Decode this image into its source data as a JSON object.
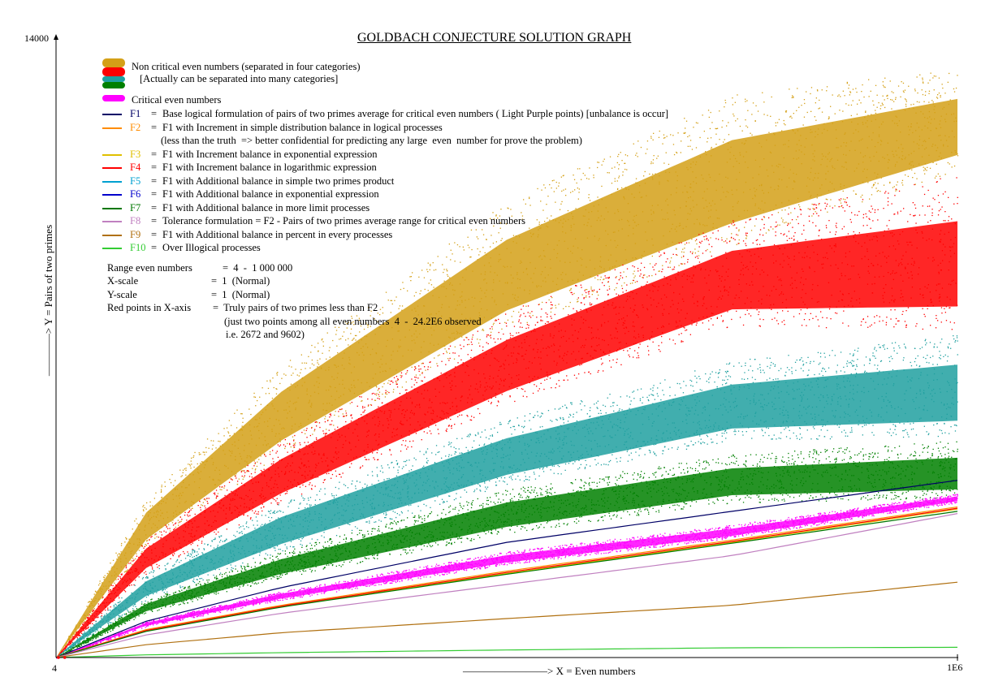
{
  "title": "GOLDBACH CONJECTURE SOLUTION GRAPH",
  "legend": {
    "non_critical_line1": "Non critical even numbers (separated in four categories)",
    "non_critical_line2": "[Actually can be separated into many categories]",
    "critical": "Critical even numbers",
    "formulas": [
      {
        "code": "F1",
        "eq": "=",
        "desc": "Base logical formulation of pairs of two primes average for critical even numbers ( Light Purple points) [unbalance is occur]",
        "color": "#000066"
      },
      {
        "code": "F2",
        "eq": "=",
        "desc": "F1 with Increment in simple distribution balance in logical processes",
        "color": "#ff8c00"
      },
      {
        "code": "F3",
        "eq": "=",
        "desc": "F1 with Increment balance in exponential expression",
        "color": "#e0c000"
      },
      {
        "code": "F4",
        "eq": "=",
        "desc": "F1 with Increment balance in logarithmic expression",
        "color": "#ff0000"
      },
      {
        "code": "F5",
        "eq": "=",
        "desc": "F1 with Additional balance in simple two primes product",
        "color": "#00a0d0"
      },
      {
        "code": "F6",
        "eq": "=",
        "desc": "F1 with Additional balance in exponential expression",
        "color": "#0000cc"
      },
      {
        "code": "F7",
        "eq": "=",
        "desc": "F1 with Additional balance in more limit processes",
        "color": "#007700"
      },
      {
        "code": "F8",
        "eq": "=",
        "desc": "Tolerance formulation = F2 - Pairs of two primes average range for critical even numbers",
        "color": "#c080c0"
      },
      {
        "code": "F9",
        "eq": "=",
        "desc": "F1 with Additional balance in percent in every processes",
        "color": "#b07010"
      },
      {
        "code": "F10",
        "eq": "=",
        "desc": "Over Illogical processes",
        "color": "#33cc33"
      }
    ],
    "f2_note": "(less than the truth  => better confidential for predicting any large  even  number for prove the problem)"
  },
  "info": {
    "range_label": "Range even numbers",
    "range_value": "=  4  -  1 000 000",
    "xscale_label": "X-scale",
    "xscale_value": "=  1  (Normal)",
    "yscale_label": "Y-scale",
    "yscale_value": "=  1  (Normal)",
    "red_label": "Red points in X-axis",
    "red_value": "=  Truly pairs of two primes less than F2",
    "red_note1": "(just two points among all even numbers  4  -  24.2E6 observed",
    "red_note2": "i.e. 2672 and 9602)"
  },
  "axes": {
    "xlabel": "————————>  X = Even numbers",
    "ylabel": "————> Y = Pairs of two primes",
    "x_min_label": "4",
    "x_max_label": "1E6",
    "y_max_label": "14000"
  },
  "chart_data": {
    "type": "scatter",
    "title": "GOLDBACH CONJECTURE SOLUTION GRAPH",
    "xlabel": "X = Even numbers",
    "ylabel": "Y = Pairs of two primes",
    "xlim": [
      4,
      1000000
    ],
    "ylim": [
      0,
      14000
    ],
    "grid": false,
    "legend_placement": "top-left",
    "point_bands": [
      {
        "name": "Non critical even numbers (gold)",
        "color": "#d4a017",
        "x": [
          4,
          100000,
          250000,
          500000,
          750000,
          1000000
        ],
        "y_low": [
          0,
          2500,
          4600,
          7400,
          9300,
          11000
        ],
        "y_high": [
          0,
          3600,
          6600,
          10300,
          12700,
          13300
        ]
      },
      {
        "name": "Non critical even numbers (red)",
        "color": "#ff0000",
        "x": [
          4,
          100000,
          250000,
          500000,
          750000,
          1000000
        ],
        "y_low": [
          0,
          1900,
          3500,
          5700,
          7500,
          7400
        ],
        "y_high": [
          0,
          2700,
          4900,
          7800,
          9900,
          10900
        ]
      },
      {
        "name": "Non critical even numbers (teal)",
        "color": "#20a0a0",
        "x": [
          4,
          100000,
          250000,
          500000,
          750000,
          1000000
        ],
        "y_low": [
          0,
          1300,
          2400,
          3900,
          4900,
          5000
        ],
        "y_high": [
          0,
          1900,
          3500,
          5400,
          6700,
          7300
        ]
      },
      {
        "name": "Non critical even numbers (green)",
        "color": "#008000",
        "x": [
          4,
          100000,
          250000,
          500000,
          750000,
          1000000
        ],
        "y_low": [
          0,
          1000,
          1800,
          2800,
          3500,
          3600
        ],
        "y_high": [
          0,
          1300,
          2400,
          3800,
          4600,
          4900
        ]
      },
      {
        "name": "Critical even numbers",
        "color": "#ff00ff",
        "x": [
          4,
          100000,
          250000,
          500000,
          750000,
          1000000
        ],
        "y_low": [
          0,
          700,
          1300,
          2100,
          2700,
          3500
        ],
        "y_high": [
          0,
          820,
          1500,
          2400,
          3000,
          3700
        ]
      }
    ],
    "series": [
      {
        "name": "F1",
        "color": "#000066",
        "x": [
          4,
          100000,
          250000,
          500000,
          750000,
          1000000
        ],
        "y": [
          0,
          820,
          1580,
          2600,
          3300,
          4000
        ]
      },
      {
        "name": "F2",
        "color": "#ff8c00",
        "x": [
          4,
          100000,
          250000,
          500000,
          750000,
          1000000
        ],
        "y": [
          0,
          630,
          1180,
          1950,
          2650,
          3400
        ]
      },
      {
        "name": "F3",
        "color": "#e0c000",
        "x": [
          4,
          100000,
          250000,
          500000,
          750000,
          1000000
        ],
        "y": [
          0,
          600,
          1150,
          1900,
          2600,
          3350
        ]
      },
      {
        "name": "F4",
        "color": "#ff0000",
        "x": [
          4,
          100000,
          250000,
          500000,
          750000,
          1000000
        ],
        "y": [
          0,
          610,
          1160,
          1920,
          2620,
          3370
        ]
      },
      {
        "name": "F7",
        "color": "#007700",
        "x": [
          4,
          100000,
          250000,
          500000,
          750000,
          1000000
        ],
        "y": [
          0,
          590,
          1140,
          1880,
          2580,
          3300
        ]
      },
      {
        "name": "F8",
        "color": "#c080c0",
        "x": [
          4,
          100000,
          250000,
          500000,
          750000,
          1000000
        ],
        "y": [
          0,
          510,
          1000,
          1650,
          2300,
          3250
        ]
      },
      {
        "name": "F9",
        "color": "#b07010",
        "x": [
          4,
          100000,
          250000,
          500000,
          750000,
          1000000
        ],
        "y": [
          0,
          290,
          560,
          880,
          1180,
          1700
        ]
      },
      {
        "name": "F10",
        "color": "#33cc33",
        "x": [
          4,
          100000,
          250000,
          500000,
          750000,
          1000000
        ],
        "y": [
          0,
          60,
          110,
          170,
          220,
          230
        ]
      }
    ],
    "annotations": [
      {
        "text": "Red points in X-axis",
        "x": [
          2672,
          9602
        ],
        "y": [
          0,
          0
        ]
      }
    ]
  }
}
